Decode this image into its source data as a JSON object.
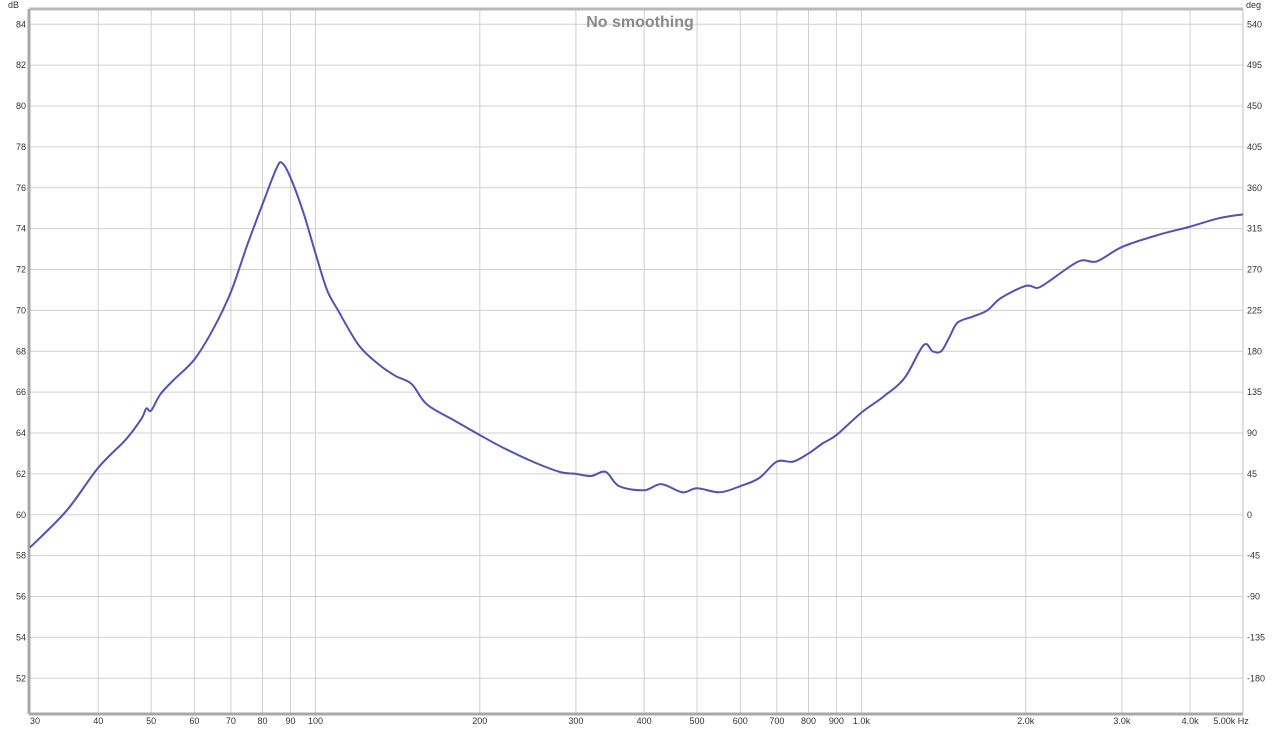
{
  "chart_data": {
    "type": "line",
    "title": "No smoothing",
    "ylabel": "dB",
    "y2label": "deg",
    "xunit": "Hz",
    "xscale": "log",
    "xlim": [
      30,
      5000
    ],
    "ylim": [
      50.3,
      84.7
    ],
    "y2_per_db": 22.5,
    "y2_zero_db": 60,
    "grid": true,
    "line_color": "#5252b6",
    "y_ticks": [
      52,
      54,
      56,
      58,
      60,
      62,
      64,
      66,
      68,
      70,
      72,
      74,
      76,
      78,
      80,
      82,
      84
    ],
    "y2_ticks": [
      "-180",
      "-135",
      "-90",
      "-45",
      "0",
      "45",
      "90",
      "135",
      "180",
      "225",
      "270",
      "315",
      "360",
      "405",
      "450",
      "495",
      "540"
    ],
    "x_ticks": [
      {
        "value": 30,
        "label": "30"
      },
      {
        "value": 40,
        "label": "40"
      },
      {
        "value": 50,
        "label": "50"
      },
      {
        "value": 60,
        "label": "60"
      },
      {
        "value": 70,
        "label": "70"
      },
      {
        "value": 80,
        "label": "80"
      },
      {
        "value": 90,
        "label": "90"
      },
      {
        "value": 100,
        "label": "100"
      },
      {
        "value": 200,
        "label": "200"
      },
      {
        "value": 300,
        "label": "300"
      },
      {
        "value": 400,
        "label": "400"
      },
      {
        "value": 500,
        "label": "500"
      },
      {
        "value": 600,
        "label": "600"
      },
      {
        "value": 700,
        "label": "700"
      },
      {
        "value": 800,
        "label": "800"
      },
      {
        "value": 900,
        "label": "900"
      },
      {
        "value": 1000,
        "label": "1.0k"
      },
      {
        "value": 2000,
        "label": "2.0k"
      },
      {
        "value": 3000,
        "label": "3.0k"
      },
      {
        "value": 4000,
        "label": "4.0k"
      },
      {
        "value": 5000,
        "label": "5.00k Hz"
      }
    ],
    "series": [
      {
        "x": [
          30,
          35,
          40,
          45,
          48,
          49,
          50,
          52,
          55,
          60,
          65,
          70,
          75,
          80,
          85,
          87,
          90,
          95,
          100,
          105,
          110,
          120,
          130,
          140,
          150,
          160,
          180,
          200,
          220,
          250,
          280,
          300,
          320,
          340,
          360,
          400,
          430,
          470,
          500,
          550,
          600,
          650,
          700,
          750,
          800,
          850,
          900,
          1000,
          1100,
          1200,
          1300,
          1350,
          1400,
          1450,
          1500,
          1600,
          1700,
          1800,
          2000,
          2100,
          2200,
          2500,
          2700,
          3000,
          3500,
          4000,
          4500,
          5000
        ],
        "y": [
          58.4,
          60.2,
          62.3,
          63.7,
          64.7,
          65.2,
          65.1,
          65.9,
          66.6,
          67.6,
          69.1,
          70.9,
          73.2,
          75.2,
          77.0,
          77.2,
          76.5,
          74.8,
          72.8,
          71.0,
          70.0,
          68.3,
          67.4,
          66.8,
          66.4,
          65.4,
          64.6,
          63.9,
          63.3,
          62.6,
          62.1,
          62.0,
          61.9,
          62.1,
          61.4,
          61.2,
          61.5,
          61.1,
          61.3,
          61.1,
          61.4,
          61.8,
          62.6,
          62.6,
          63.0,
          63.5,
          63.9,
          65.0,
          65.8,
          66.7,
          68.3,
          68.0,
          68.0,
          68.7,
          69.4,
          69.7,
          70.0,
          70.6,
          71.2,
          71.1,
          71.4,
          72.4,
          72.4,
          73.1,
          73.7,
          74.1,
          74.5,
          74.7
        ]
      }
    ]
  }
}
